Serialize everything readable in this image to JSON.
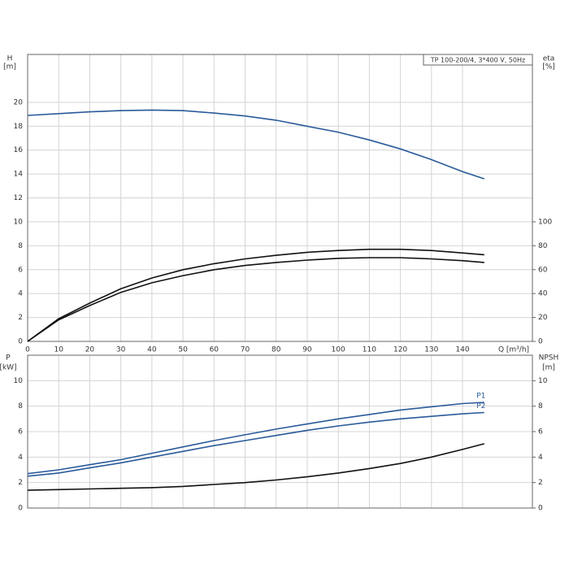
{
  "chart_data": [
    {
      "type": "line",
      "title": "TP 100-200/4, 3*400 V, 50Hz",
      "ylabel": "H",
      "yunit": "[m]",
      "y2label": "eta",
      "y2unit": "[%]",
      "xlabel": "Q [m³/h]",
      "x": [
        0,
        10,
        20,
        30,
        40,
        50,
        60,
        70,
        80,
        90,
        100,
        110,
        120,
        130,
        140,
        147
      ],
      "xlim": [
        0,
        162.5
      ],
      "xticks": [
        0,
        10,
        20,
        30,
        40,
        50,
        60,
        70,
        80,
        90,
        100,
        110,
        120,
        130,
        140
      ],
      "ylim": [
        0,
        24
      ],
      "yticks": [
        0,
        2,
        4,
        6,
        8,
        10,
        12,
        14,
        16,
        18,
        20
      ],
      "y2lim": [
        0,
        240
      ],
      "y2ticks": [
        0,
        20,
        40,
        60,
        80,
        100
      ],
      "grid": true,
      "series": [
        {
          "color": "#2a5a9a",
          "axis": "y",
          "values": [
            18.9,
            19.05,
            19.2,
            19.3,
            19.35,
            19.3,
            19.1,
            18.85,
            18.5,
            18.0,
            17.5,
            16.85,
            16.1,
            15.2,
            14.2,
            13.6
          ]
        },
        {
          "color": "#111111",
          "axis": "y2",
          "values": [
            0,
            19,
            32,
            44,
            53,
            60,
            65,
            69,
            72,
            74.5,
            76,
            77,
            77,
            76,
            74,
            72.5
          ]
        },
        {
          "color": "#111111",
          "axis": "y2",
          "values": [
            0,
            18,
            30,
            41,
            49,
            55,
            60,
            63.5,
            66,
            68,
            69.5,
            70,
            70,
            69,
            67.5,
            66
          ]
        }
      ]
    },
    {
      "type": "line",
      "ylabel": "P",
      "yunit": "[kW]",
      "y2label": "NPSH",
      "y2unit": "[m]",
      "x": [
        0,
        10,
        20,
        30,
        40,
        50,
        60,
        70,
        80,
        90,
        100,
        110,
        120,
        130,
        140,
        147
      ],
      "xlim": [
        0,
        162.5
      ],
      "xticks": [
        0,
        10,
        20,
        30,
        40,
        50,
        60,
        70,
        80,
        90,
        100,
        110,
        120,
        130,
        140
      ],
      "ylim": [
        0,
        12
      ],
      "yticks": [
        0,
        2,
        4,
        6,
        8,
        10
      ],
      "y2lim": [
        0,
        12
      ],
      "y2ticks": [
        0,
        2,
        4,
        6,
        8,
        10
      ],
      "grid": true,
      "series": [
        {
          "name": "P1",
          "color": "#2a5a9a",
          "axis": "y",
          "values": [
            2.7,
            3.0,
            3.4,
            3.8,
            4.3,
            4.8,
            5.3,
            5.75,
            6.2,
            6.6,
            7.0,
            7.35,
            7.7,
            7.95,
            8.2,
            8.3
          ]
        },
        {
          "name": "P2",
          "color": "#2a5a9a",
          "axis": "y",
          "values": [
            2.5,
            2.75,
            3.15,
            3.55,
            4.0,
            4.45,
            4.9,
            5.3,
            5.7,
            6.1,
            6.45,
            6.75,
            7.0,
            7.2,
            7.4,
            7.5
          ]
        },
        {
          "color": "#111111",
          "axis": "y2",
          "values": [
            1.4,
            1.45,
            1.5,
            1.55,
            1.6,
            1.7,
            1.85,
            2.0,
            2.2,
            2.45,
            2.75,
            3.1,
            3.5,
            4.0,
            4.6,
            5.05
          ]
        }
      ]
    }
  ]
}
